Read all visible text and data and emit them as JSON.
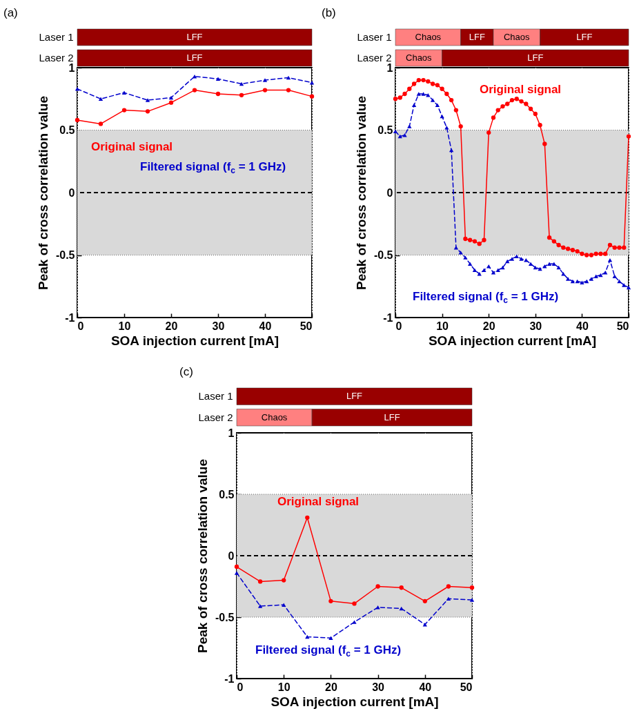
{
  "chart_data": [
    {
      "type": "bar",
      "title": "(a)",
      "orientation": "horizontal",
      "stacked": true,
      "categories": [
        "Laser 1",
        "Laser 2"
      ],
      "xlim": [
        0,
        50
      ],
      "tick_labels": "y",
      "series": [
        {
          "values": [
            50,
            50
          ],
          "colors": [
            "#990000",
            "#990000"
          ],
          "value_labels": [
            "LFF",
            "LFF"
          ]
        }
      ]
    },
    {
      "type": "line",
      "xlabel": "SOA injection current [mA]",
      "ylabel": "Peak of cross correlation value",
      "x": [
        0,
        5,
        10,
        15,
        20,
        25,
        30,
        35,
        40,
        45,
        50
      ],
      "xlim": [
        0,
        50
      ],
      "xticks": [
        0,
        10,
        20,
        30,
        40,
        50
      ],
      "ylim": [
        -1,
        1
      ],
      "yticks": [
        -1,
        -0.5,
        0,
        0.5,
        1
      ],
      "grid": "x",
      "legend": false,
      "bands": [
        {
          "axis": "y",
          "from": -0.5,
          "to": 0.5,
          "color": "#d9d9d9"
        }
      ],
      "ref_lines": [
        {
          "axis": "y",
          "value": 0,
          "color": "#000000",
          "line_style": "dashed"
        }
      ],
      "series": [
        {
          "name": "Original signal",
          "color": "#ff0000",
          "marker": "circle",
          "line_style": "solid",
          "values": [
            0.58,
            0.55,
            0.66,
            0.65,
            0.72,
            0.82,
            0.79,
            0.78,
            0.82,
            0.82,
            0.77
          ]
        },
        {
          "name": "Filtered signal (f$_{c}$ = 1 GHz)",
          "color": "#0000cc",
          "marker": "triangle",
          "line_style": "dashed",
          "values": [
            0.83,
            0.75,
            0.8,
            0.74,
            0.76,
            0.93,
            0.91,
            0.87,
            0.9,
            0.92,
            0.88
          ]
        }
      ]
    },
    {
      "type": "bar",
      "title": "(b)",
      "orientation": "horizontal",
      "stacked": true,
      "categories": [
        "Laser 1",
        "Laser 2"
      ],
      "xlim": [
        0,
        50
      ],
      "tick_labels": "y",
      "series": [
        {
          "values": [
            14,
            10
          ],
          "colors": [
            "#ff8080",
            "#ff8080"
          ],
          "value_labels": [
            "Chaos",
            "Chaos"
          ]
        },
        {
          "values": [
            7,
            40
          ],
          "colors": [
            "#990000",
            "#990000"
          ],
          "value_labels": [
            "LFF",
            "LFF"
          ]
        },
        {
          "values": [
            10,
            null
          ],
          "colors": [
            "#ff8080",
            null
          ],
          "value_labels": [
            "Chaos",
            null
          ]
        },
        {
          "values": [
            19,
            null
          ],
          "colors": [
            "#990000",
            null
          ],
          "value_labels": [
            "LFF",
            null
          ]
        }
      ]
    },
    {
      "type": "line",
      "xlabel": "SOA injection current [mA]",
      "ylabel": "Peak of cross correlation value",
      "x": [
        0,
        1,
        2,
        3,
        4,
        5,
        6,
        7,
        8,
        9,
        10,
        11,
        12,
        13,
        14,
        15,
        16,
        17,
        18,
        19,
        20,
        21,
        22,
        23,
        24,
        25,
        26,
        27,
        28,
        29,
        30,
        31,
        32,
        33,
        34,
        35,
        36,
        37,
        38,
        39,
        40,
        41,
        42,
        43,
        44,
        45,
        46,
        47,
        48,
        49,
        50
      ],
      "xlim": [
        0,
        50
      ],
      "xticks": [
        0,
        10,
        20,
        30,
        40,
        50
      ],
      "ylim": [
        -1,
        1
      ],
      "yticks": [
        -1,
        -0.5,
        0,
        0.5,
        1
      ],
      "grid": "x",
      "legend": false,
      "bands": [
        {
          "axis": "y",
          "from": -0.5,
          "to": 0.5,
          "color": "#d9d9d9"
        }
      ],
      "ref_lines": [
        {
          "axis": "y",
          "value": 0,
          "color": "#000000",
          "line_style": "dashed"
        }
      ],
      "series": [
        {
          "name": "Original signal",
          "color": "#ff0000",
          "marker": "circle",
          "line_style": "solid",
          "values": [
            0.75,
            0.76,
            0.79,
            0.83,
            0.87,
            0.9,
            0.9,
            0.89,
            0.87,
            0.86,
            0.83,
            0.79,
            0.74,
            0.66,
            0.53,
            -0.37,
            -0.38,
            -0.39,
            -0.41,
            -0.38,
            0.48,
            0.6,
            0.66,
            0.69,
            0.71,
            0.74,
            0.75,
            0.73,
            0.71,
            0.67,
            0.63,
            0.54,
            0.39,
            -0.36,
            -0.39,
            -0.42,
            -0.44,
            -0.45,
            -0.46,
            -0.47,
            -0.49,
            -0.5,
            -0.5,
            -0.49,
            -0.49,
            -0.49,
            -0.42,
            -0.44,
            -0.44,
            -0.44,
            0.45
          ]
        },
        {
          "name": "Filtered signal (f$_{c}$ = 1 GHz)",
          "color": "#0000cc",
          "marker": "triangle",
          "line_style": "dashed",
          "values": [
            0.49,
            0.45,
            0.46,
            0.53,
            0.7,
            0.79,
            0.79,
            0.78,
            0.74,
            0.7,
            0.61,
            0.52,
            0.34,
            -0.44,
            -0.48,
            -0.52,
            -0.57,
            -0.62,
            -0.65,
            -0.62,
            -0.59,
            -0.64,
            -0.62,
            -0.6,
            -0.55,
            -0.53,
            -0.51,
            -0.53,
            -0.54,
            -0.57,
            -0.6,
            -0.61,
            -0.59,
            -0.57,
            -0.57,
            -0.6,
            -0.65,
            -0.69,
            -0.71,
            -0.71,
            -0.72,
            -0.71,
            -0.69,
            -0.67,
            -0.66,
            -0.64,
            -0.54,
            -0.67,
            -0.71,
            -0.74,
            -0.76
          ]
        }
      ]
    },
    {
      "type": "bar",
      "title": "(c)",
      "orientation": "horizontal",
      "stacked": true,
      "categories": [
        "Laser 1",
        "Laser 2"
      ],
      "xlim": [
        0,
        50
      ],
      "tick_labels": "y",
      "series": [
        {
          "values": [
            50,
            16
          ],
          "colors": [
            "#990000",
            "#ff8080"
          ],
          "value_labels": [
            "LFF",
            "Chaos"
          ]
        },
        {
          "values": [
            null,
            34
          ],
          "colors": [
            null,
            "#990000"
          ],
          "value_labels": [
            null,
            "LFF"
          ]
        }
      ]
    },
    {
      "type": "line",
      "xlabel": "SOA injection current [mA]",
      "ylabel": "Peak of cross correlation value",
      "x": [
        0,
        5,
        10,
        15,
        20,
        25,
        30,
        35,
        40,
        45,
        50
      ],
      "xlim": [
        0,
        50
      ],
      "xticks": [
        0,
        10,
        20,
        30,
        40,
        50
      ],
      "ylim": [
        -1,
        1
      ],
      "yticks": [
        -1,
        -0.5,
        0,
        0.5,
        1
      ],
      "grid": "x",
      "legend": false,
      "bands": [
        {
          "axis": "y",
          "from": -0.5,
          "to": 0.5,
          "color": "#d9d9d9"
        }
      ],
      "ref_lines": [
        {
          "axis": "y",
          "value": 0,
          "color": "#000000",
          "line_style": "dashed"
        }
      ],
      "series": [
        {
          "name": "Original signal",
          "color": "#ff0000",
          "marker": "circle",
          "line_style": "solid",
          "values": [
            -0.09,
            -0.21,
            -0.2,
            0.31,
            -0.37,
            -0.39,
            -0.25,
            -0.26,
            -0.37,
            -0.25,
            -0.26
          ]
        },
        {
          "name": "Filtered signal (f$_{c}$ = 1 GHz)",
          "color": "#0000cc",
          "marker": "triangle",
          "line_style": "dashed",
          "values": [
            -0.14,
            -0.41,
            -0.4,
            -0.66,
            -0.67,
            -0.54,
            -0.42,
            -0.43,
            -0.56,
            -0.35,
            -0.36
          ]
        }
      ]
    }
  ]
}
